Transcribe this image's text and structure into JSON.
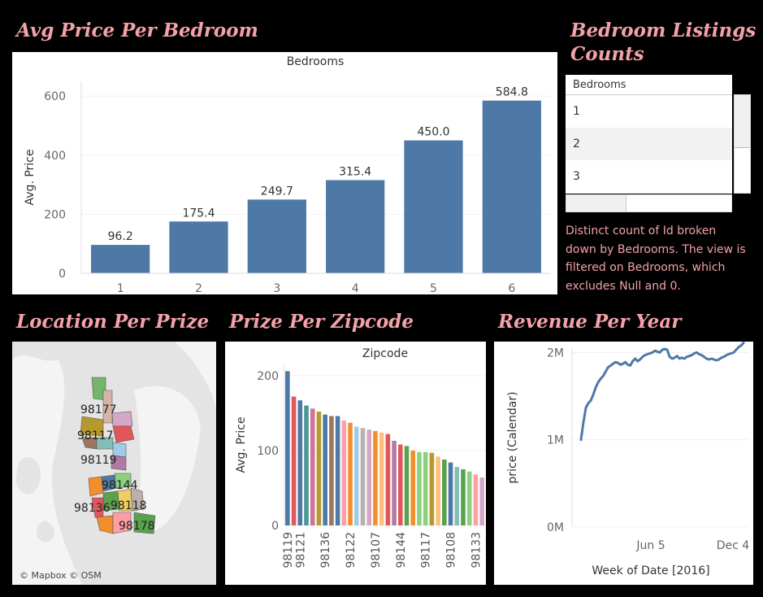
{
  "titles": {
    "avg_price": "Avg Price Per Bedroom",
    "listing_counts_1": "Bedroom Listings",
    "listing_counts_2": "Counts",
    "location": "Location Per Prize",
    "zipcode": "Prize Per Zipcode",
    "revenue": "Revenue Per Year"
  },
  "counts_table": {
    "header": "Bedrooms",
    "rows": [
      "1",
      "2",
      "3"
    ],
    "caption": [
      "Distinct count of Id broken",
      "down by Bedrooms. The view is",
      "filtered on Bedrooms, which",
      "excludes Null and 0."
    ]
  },
  "map": {
    "attribution": "© Mapbox © OSM",
    "labels": [
      "98177",
      "98117",
      "98119",
      "98144",
      "98136",
      "98118",
      "98178"
    ]
  },
  "chart_data": [
    {
      "type": "bar",
      "title": "Bedrooms",
      "xlabel": "",
      "ylabel": "Avg. Price",
      "categories": [
        "1",
        "2",
        "3",
        "4",
        "5",
        "6"
      ],
      "values": [
        96.2,
        175.4,
        249.7,
        315.4,
        450.0,
        584.8
      ],
      "value_labels": [
        "96.2",
        "175.4",
        "249.7",
        "315.4",
        "450.0",
        "584.8"
      ],
      "yticks": [
        0,
        200,
        400,
        600
      ],
      "ylim": [
        0,
        650
      ],
      "color": "#4e79a7",
      "grid": true
    },
    {
      "type": "bar",
      "title": "Zipcode",
      "xlabel": "",
      "ylabel": "Avg. Price",
      "categories": [
        "98119",
        "",
        "98121",
        "",
        "",
        "",
        "98136",
        "",
        "",
        "",
        "98122",
        "",
        "",
        "",
        "98107",
        "",
        "",
        "",
        "98144",
        "",
        "",
        "",
        "98117",
        "",
        "",
        "",
        "98108",
        "",
        "",
        "",
        "98133",
        ""
      ],
      "values": [
        206,
        172,
        167,
        160,
        156,
        152,
        148,
        146,
        146,
        140,
        137,
        132,
        130,
        128,
        126,
        124,
        122,
        113,
        108,
        106,
        100,
        98,
        98,
        97,
        92,
        88,
        84,
        78,
        75,
        72,
        68,
        64
      ],
      "colors": [
        "#4e79a7",
        "#e15759",
        "#4e79a7",
        "#499894",
        "#d37295",
        "#b6992d",
        "#4e79a7",
        "#9d7660",
        "#4e79a7",
        "#ff9da7",
        "#f28e2b",
        "#a0cbe8",
        "#bab0ac",
        "#d4a6c8",
        "#f28e2b",
        "#ffbe7d",
        "#e15759",
        "#b07aa1",
        "#e15759",
        "#59a14f",
        "#f28e2b",
        "#8cd17d",
        "#8cd17d",
        "#b6992d",
        "#ffbe7d",
        "#59a14f",
        "#4e79a7",
        "#86bcb6",
        "#59a14f",
        "#8cd17d",
        "#ff9da7",
        "#d4a6c8"
      ],
      "yticks": [
        0,
        100,
        200
      ],
      "ylim": [
        0,
        215
      ],
      "grid": true
    },
    {
      "type": "line",
      "title": "",
      "xlabel": "Week of Date [2016]",
      "ylabel": "price (Calendar)",
      "xticks": [
        "Jun 5",
        "Dec 4"
      ],
      "yticks": [
        "0M",
        "1M",
        "2M"
      ],
      "ylim": [
        0,
        2050000
      ],
      "color": "#4e79a7",
      "series": [
        {
          "values": [
            1000000,
            1200000,
            1370000,
            1420000,
            1450000,
            1520000,
            1600000,
            1660000,
            1700000,
            1730000,
            1780000,
            1830000,
            1850000,
            1870000,
            1890000,
            1880000,
            1860000,
            1870000,
            1890000,
            1860000,
            1850000,
            1900000,
            1930000,
            1900000,
            1920000,
            1950000,
            1970000,
            1980000,
            1990000,
            2000000,
            2020000,
            2010000,
            2000000,
            2030000,
            2040000,
            2030000,
            1950000,
            1930000,
            1940000,
            1960000,
            1930000,
            1940000,
            1930000,
            1950000,
            1960000,
            1970000,
            1990000,
            2000000,
            1980000,
            1970000,
            1950000,
            1930000,
            1920000,
            1930000,
            1920000,
            1910000,
            1920000,
            1940000,
            1950000,
            1970000,
            1980000,
            1990000,
            2000000,
            2030000,
            2060000,
            2080000,
            2110000
          ]
        }
      ]
    }
  ]
}
